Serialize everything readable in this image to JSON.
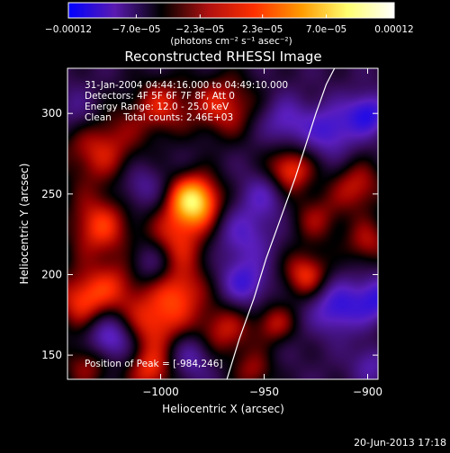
{
  "chart_data": {
    "type": "heatmap",
    "title": "Reconstructed RHESSI Image",
    "xlabel": "Heliocentric X (arcsec)",
    "ylabel": "Heliocentric Y (arcsec)",
    "xlim": [
      -1045,
      -895
    ],
    "ylim": [
      135,
      328
    ],
    "x_ticks": [
      -1000,
      -950,
      -900
    ],
    "y_ticks": [
      150,
      200,
      250,
      300
    ],
    "x_tick_labels": [
      "−1000",
      "−950",
      "−900"
    ],
    "y_tick_labels": [
      "150",
      "200",
      "250",
      "300"
    ],
    "colorbar": {
      "range": [
        -0.00012,
        0.00012
      ],
      "ticks": [
        -0.00012,
        -7e-05,
        -2.3e-05,
        2.3e-05,
        7e-05,
        0.00012
      ],
      "tick_labels": [
        "−0.00012",
        "−7.0e−05",
        "−2.3e−05",
        "2.3e−05",
        "7.0e−05",
        "0.00012"
      ],
      "unit_label": "(photons cm⁻² s⁻¹ asec⁻²)",
      "colors": [
        "#0000ff",
        "#5a1ab0",
        "#000000",
        "#b01010",
        "#ff3000",
        "#ff9a00",
        "#ffff70",
        "#ffffff"
      ]
    },
    "annotations": [
      "31-Jan-2004 04:44:16.000 to 04:49:10.000",
      "Detectors: 4F 5F 6F 7F 8F, Att 0",
      "Energy Range: 12.0 - 25.0 keV",
      "Clean    Total counts: 2.46E+03"
    ],
    "peak_label": "Position of Peak = [-984,246]",
    "peak": [
      -984,
      246
    ],
    "limb_curve": {
      "x": [
        -968,
        -962,
        -955,
        -949,
        -942,
        -935,
        -930,
        -925,
        -920,
        -916
      ],
      "y": [
        135,
        160,
        185,
        210,
        235,
        260,
        280,
        300,
        318,
        328
      ]
    },
    "sources": [
      {
        "x": -984,
        "y": 246,
        "value": 1.0,
        "size": 9
      },
      {
        "x": -1030,
        "y": 280,
        "value": 0.5,
        "size": 14
      },
      {
        "x": -1030,
        "y": 230,
        "value": 0.55,
        "size": 11
      },
      {
        "x": -1038,
        "y": 185,
        "value": 0.55,
        "size": 10
      },
      {
        "x": -1000,
        "y": 305,
        "value": 0.45,
        "size": 10
      },
      {
        "x": -993,
        "y": 220,
        "value": 0.5,
        "size": 11
      },
      {
        "x": -970,
        "y": 305,
        "value": 0.5,
        "size": 11
      },
      {
        "x": -1020,
        "y": 195,
        "value": 0.35,
        "size": 10
      },
      {
        "x": -990,
        "y": 190,
        "value": 0.45,
        "size": 9
      },
      {
        "x": -1003,
        "y": 170,
        "value": 0.55,
        "size": 11
      },
      {
        "x": -970,
        "y": 165,
        "value": 0.45,
        "size": 10
      },
      {
        "x": -938,
        "y": 265,
        "value": 0.6,
        "size": 8
      },
      {
        "x": -925,
        "y": 235,
        "value": 0.35,
        "size": 9
      },
      {
        "x": -930,
        "y": 200,
        "value": 0.55,
        "size": 8
      },
      {
        "x": -945,
        "y": 170,
        "value": 0.4,
        "size": 7
      },
      {
        "x": -905,
        "y": 255,
        "value": 0.45,
        "size": 9
      },
      {
        "x": -900,
        "y": 220,
        "value": 0.4,
        "size": 8
      },
      {
        "x": -880,
        "y": 160,
        "value": 0.45,
        "size": 9
      },
      {
        "x": -955,
        "y": 140,
        "value": 0.35,
        "size": 7
      },
      {
        "x": -1035,
        "y": 145,
        "value": 0.4,
        "size": 9
      },
      {
        "x": -1005,
        "y": 140,
        "value": 0.5,
        "size": 8
      },
      {
        "x": -960,
        "y": 225,
        "value": -0.35,
        "size": 10
      },
      {
        "x": -1010,
        "y": 255,
        "value": -0.3,
        "size": 8
      },
      {
        "x": -1005,
        "y": 208,
        "value": -0.35,
        "size": 8
      },
      {
        "x": -1025,
        "y": 160,
        "value": -0.55,
        "size": 8
      },
      {
        "x": -960,
        "y": 195,
        "value": -0.45,
        "size": 8
      },
      {
        "x": -985,
        "y": 150,
        "value": -0.35,
        "size": 8
      },
      {
        "x": -918,
        "y": 290,
        "value": -0.45,
        "size": 9
      },
      {
        "x": -900,
        "y": 300,
        "value": -0.55,
        "size": 7
      },
      {
        "x": -915,
        "y": 180,
        "value": -0.5,
        "size": 9
      },
      {
        "x": -895,
        "y": 185,
        "value": -0.5,
        "size": 8
      },
      {
        "x": -898,
        "y": 145,
        "value": -0.3,
        "size": 7
      },
      {
        "x": -940,
        "y": 295,
        "value": -0.35,
        "size": 8
      },
      {
        "x": -950,
        "y": 250,
        "value": -0.3,
        "size": 8
      },
      {
        "x": -1040,
        "y": 300,
        "value": -0.3,
        "size": 9
      }
    ],
    "background_value": -0.22
  },
  "footer": {
    "date": "20-Jun-2013 17:18"
  }
}
